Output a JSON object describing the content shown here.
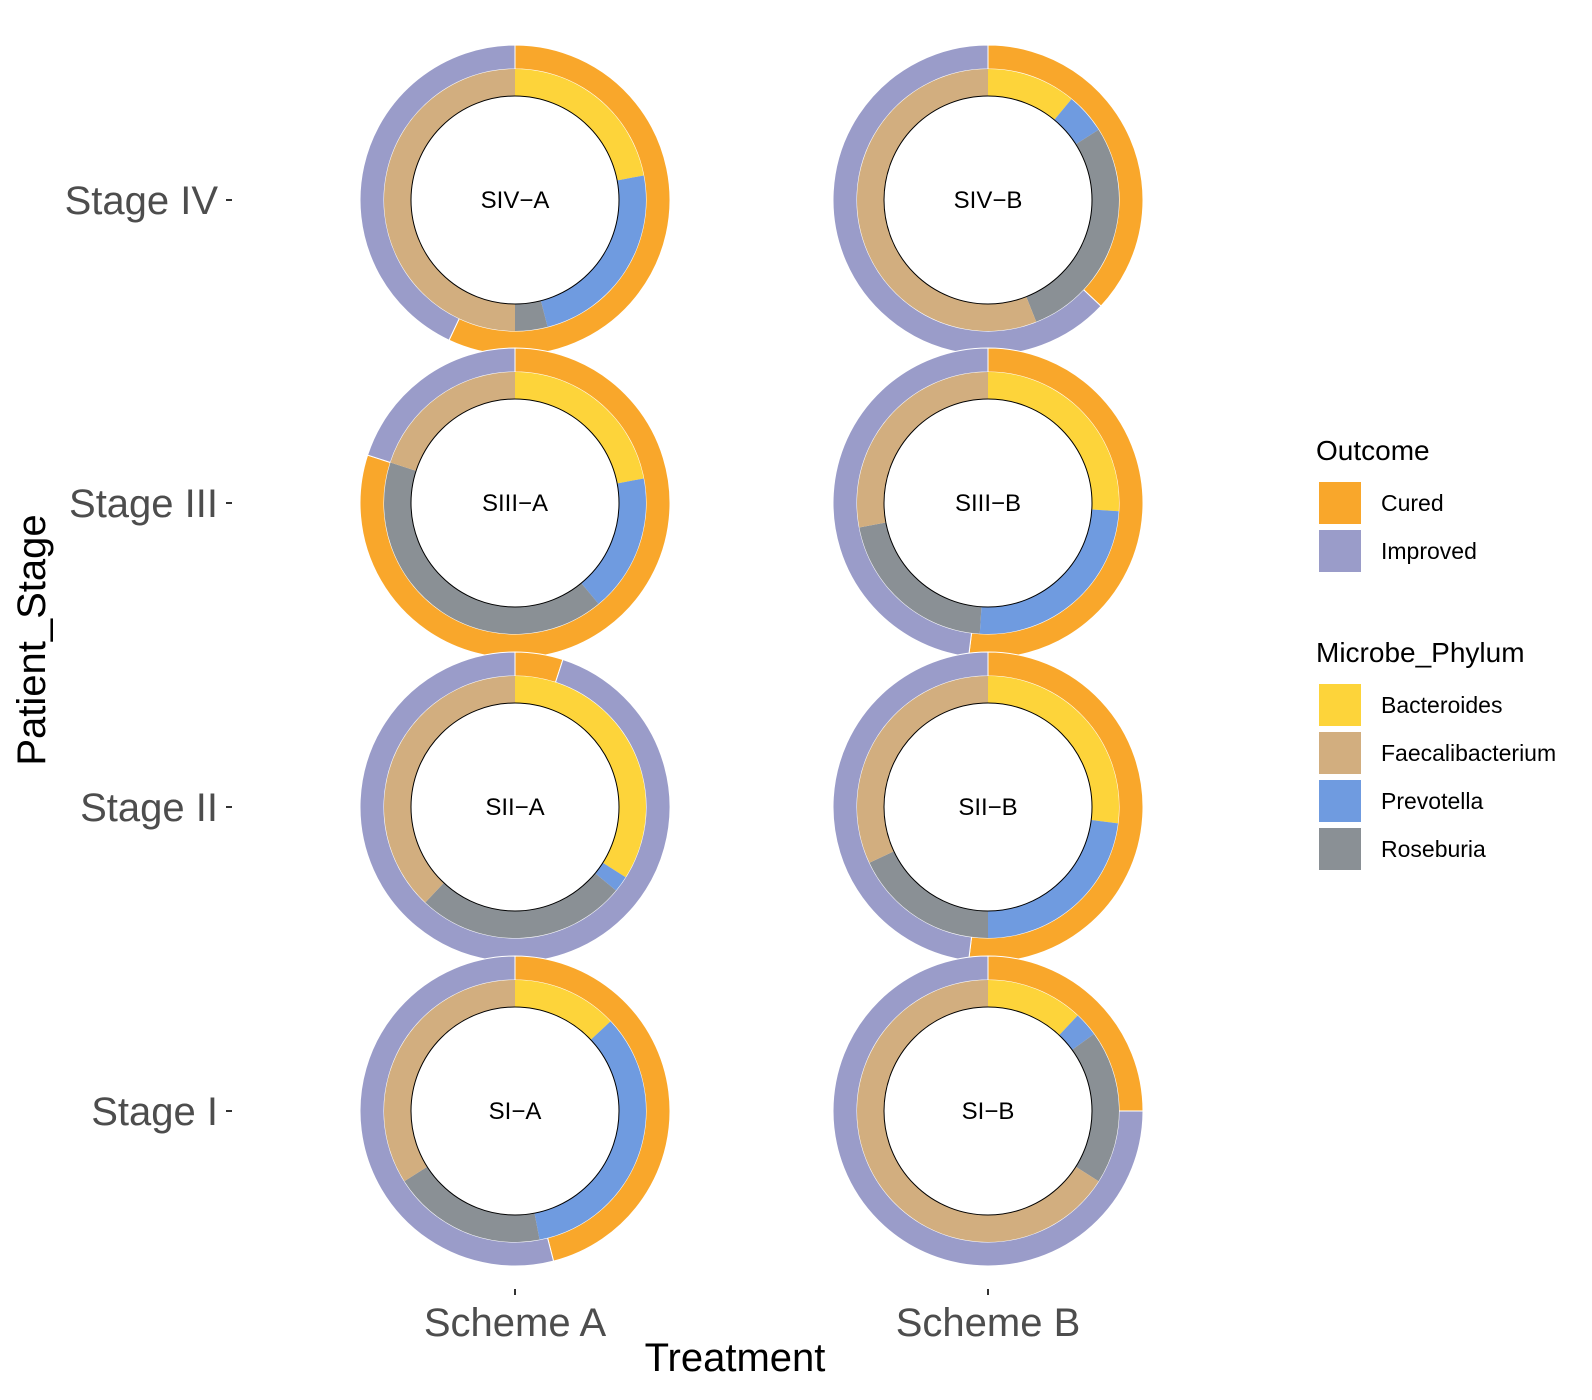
{
  "chart_data": {
    "type": "donut-grid",
    "xlabel": "Treatment",
    "ylabel": "Patient_Stage",
    "x_categories": [
      "Scheme A",
      "Scheme B"
    ],
    "y_categories": [
      "Stage IV",
      "Stage III",
      "Stage II",
      "Stage I"
    ],
    "legends": [
      {
        "title": "Outcome",
        "entries": [
          {
            "name": "Cured",
            "color": "#F9A72B"
          },
          {
            "name": "Improved",
            "color": "#9A9CC9"
          }
        ]
      },
      {
        "title": "Microbe_Phylum",
        "entries": [
          {
            "name": "Bacteroides",
            "color": "#FDD43A"
          },
          {
            "name": "Faecalibacterium",
            "color": "#D2AE7F"
          },
          {
            "name": "Prevotella",
            "color": "#6F9BE0"
          },
          {
            "name": "Roseburia",
            "color": "#8A9095"
          }
        ]
      }
    ],
    "legend_position": "right",
    "panels": [
      {
        "stage": "Stage IV",
        "treatment": "Scheme A",
        "label": "SIV−A",
        "outcome": {
          "Cured": 0.57,
          "Improved": 0.43
        },
        "phylum": {
          "Bacteroides": 0.22,
          "Prevotella": 0.24,
          "Roseburia": 0.04,
          "Faecalibacterium": 0.5
        }
      },
      {
        "stage": "Stage IV",
        "treatment": "Scheme B",
        "label": "SIV−B",
        "outcome": {
          "Cured": 0.37,
          "Improved": 0.63
        },
        "phylum": {
          "Bacteroides": 0.11,
          "Prevotella": 0.05,
          "Roseburia": 0.28,
          "Faecalibacterium": 0.56
        }
      },
      {
        "stage": "Stage III",
        "treatment": "Scheme A",
        "label": "SIII−A",
        "outcome": {
          "Cured": 0.8,
          "Improved": 0.2
        },
        "phylum": {
          "Bacteroides": 0.22,
          "Prevotella": 0.17,
          "Roseburia": 0.41,
          "Faecalibacterium": 0.2
        }
      },
      {
        "stage": "Stage III",
        "treatment": "Scheme B",
        "label": "SIII−B",
        "outcome": {
          "Cured": 0.52,
          "Improved": 0.48
        },
        "phylum": {
          "Bacteroides": 0.26,
          "Prevotella": 0.25,
          "Roseburia": 0.21,
          "Faecalibacterium": 0.28
        }
      },
      {
        "stage": "Stage II",
        "treatment": "Scheme A",
        "label": "SII−A",
        "outcome": {
          "Cured": 0.05,
          "Improved": 0.95
        },
        "phylum": {
          "Bacteroides": 0.34,
          "Prevotella": 0.02,
          "Roseburia": 0.26,
          "Faecalibacterium": 0.38
        }
      },
      {
        "stage": "Stage II",
        "treatment": "Scheme B",
        "label": "SII−B",
        "outcome": {
          "Cured": 0.52,
          "Improved": 0.48
        },
        "phylum": {
          "Bacteroides": 0.27,
          "Prevotella": 0.23,
          "Roseburia": 0.18,
          "Faecalibacterium": 0.32
        }
      },
      {
        "stage": "Stage I",
        "treatment": "Scheme A",
        "label": "SI−A",
        "outcome": {
          "Cured": 0.46,
          "Improved": 0.54
        },
        "phylum": {
          "Bacteroides": 0.13,
          "Prevotella": 0.34,
          "Roseburia": 0.19,
          "Faecalibacterium": 0.34
        }
      },
      {
        "stage": "Stage I",
        "treatment": "Scheme B",
        "label": "SI−B",
        "outcome": {
          "Cured": 0.25,
          "Improved": 0.75
        },
        "phylum": {
          "Bacteroides": 0.12,
          "Prevotella": 0.03,
          "Roseburia": 0.19,
          "Faecalibacterium": 0.66
        }
      }
    ]
  }
}
